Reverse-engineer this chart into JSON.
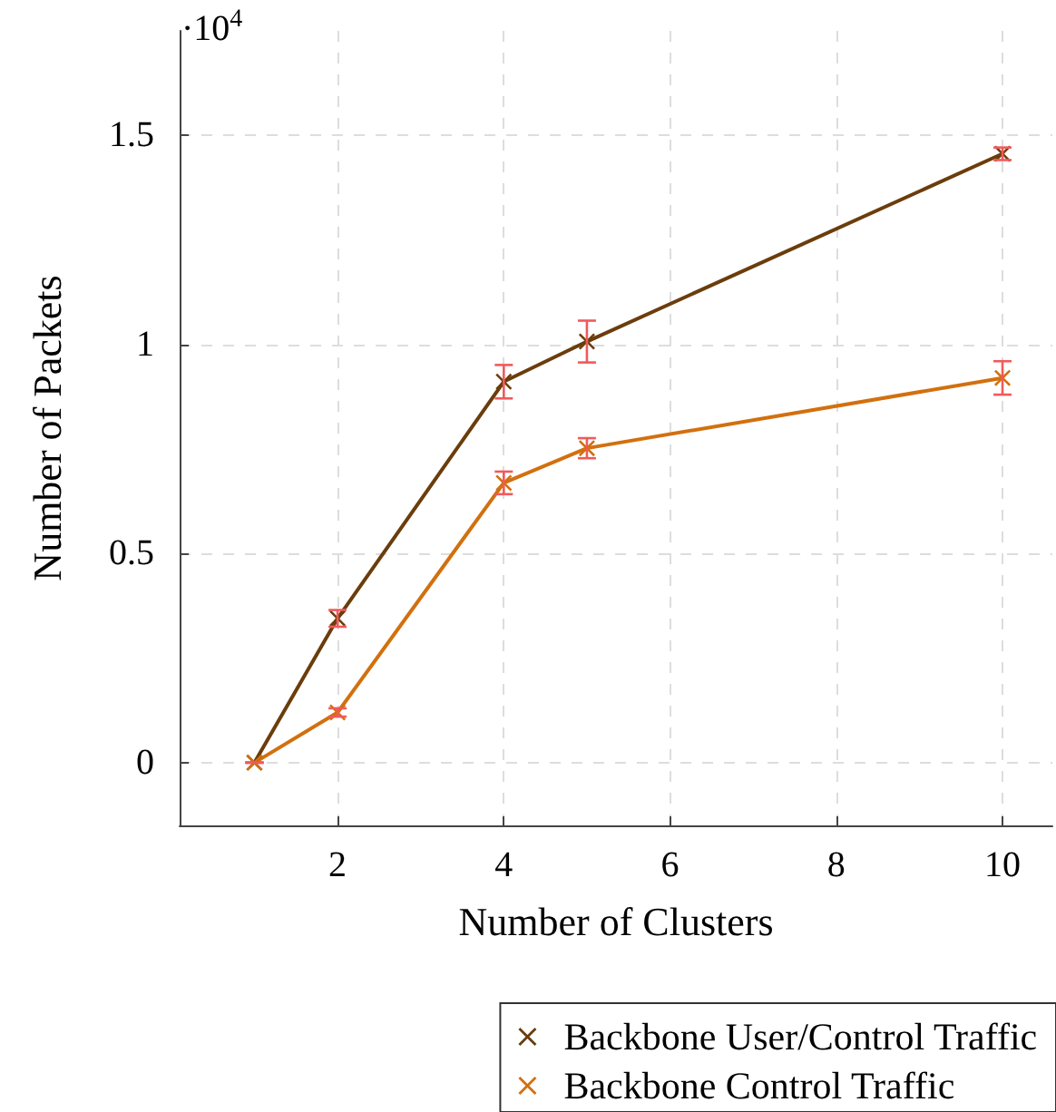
{
  "chart_data": {
    "type": "line",
    "xlabel": "Number of Clusters",
    "ylabel": "Number of Packets",
    "annotations": [
      "·10$^{4}$"
    ],
    "x": [
      1,
      2,
      4,
      5,
      10
    ],
    "series": [
      {
        "name": "Backbone User/Control Traffic",
        "color": "#6b3d0c",
        "values": [
          0,
          0.345,
          0.911,
          1.007,
          1.456
        ],
        "errors": [
          0,
          0.02,
          0.04,
          0.05,
          0.015
        ]
      },
      {
        "name": "Backbone Control Traffic",
        "color": "#d2700f",
        "values": [
          0,
          0.12,
          0.669,
          0.752,
          0.92
        ],
        "errors": [
          0,
          0.01,
          0.027,
          0.024,
          0.04
        ]
      }
    ],
    "xlim": [
      0.1,
      10.6
    ],
    "xticks": [
      2,
      4,
      6,
      8,
      10
    ],
    "ylim": [
      -0.15,
      1.75
    ],
    "yticks": [
      0,
      0.5,
      1,
      1.5
    ],
    "grid": true,
    "legend": "bottom",
    "marker": "cross",
    "line_style": "solid"
  }
}
